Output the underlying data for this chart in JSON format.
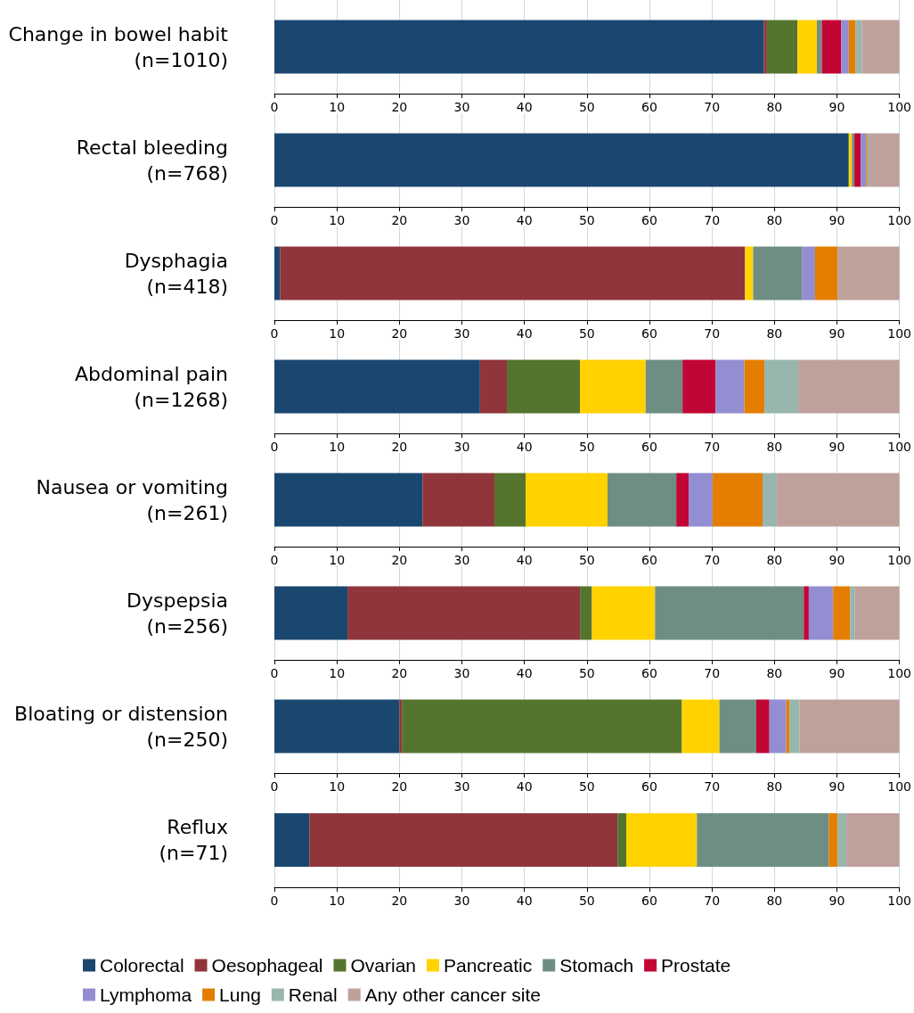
{
  "chart_data": [
    {
      "type": "bar",
      "orientation": "horizontal",
      "stacked": true,
      "categories": [
        "Change in bowel habit\n(n=1010)"
      ],
      "series": [
        {
          "color": "#1a476f",
          "values": [
            78.3
          ]
        },
        {
          "color": "#90353b",
          "values": [
            0.5
          ]
        },
        {
          "color": "#55752f",
          "values": [
            4.9
          ]
        },
        {
          "color": "#ffd200",
          "values": [
            3.1
          ]
        },
        {
          "color": "#6e8e84",
          "values": [
            0.8
          ]
        },
        {
          "color": "#c10534",
          "values": [
            3.1
          ]
        },
        {
          "color": "#938dd2",
          "values": [
            1.2
          ]
        },
        {
          "color": "#e37e00",
          "values": [
            1.1
          ]
        },
        {
          "color": "#98b6ad",
          "values": [
            1.0
          ]
        },
        {
          "color": "#bfa19c",
          "values": [
            6.0
          ]
        }
      ],
      "xlim": [
        0,
        100
      ],
      "xticks": [
        0,
        10,
        20,
        30,
        40,
        50,
        60,
        70,
        80,
        90,
        100
      ],
      "grid": "x"
    },
    {
      "type": "bar",
      "orientation": "horizontal",
      "stacked": true,
      "categories": [
        "Rectal bleeding\n(n=768)"
      ],
      "series": [
        {
          "color": "#1a476f",
          "values": [
            91.9
          ]
        },
        {
          "color": "#90353b",
          "values": [
            0
          ]
        },
        {
          "color": "#55752f",
          "values": [
            0
          ]
        },
        {
          "color": "#ffd200",
          "values": [
            0.5
          ]
        },
        {
          "color": "#6e8e84",
          "values": [
            0.4
          ]
        },
        {
          "color": "#c10534",
          "values": [
            1.0
          ]
        },
        {
          "color": "#938dd2",
          "values": [
            0.9
          ]
        },
        {
          "color": "#e37e00",
          "values": [
            0.2
          ]
        },
        {
          "color": "#98b6ad",
          "values": [
            0.3
          ]
        },
        {
          "color": "#bfa19c",
          "values": [
            4.8
          ]
        }
      ],
      "xlim": [
        0,
        100
      ],
      "xticks": [
        0,
        10,
        20,
        30,
        40,
        50,
        60,
        70,
        80,
        90,
        100
      ],
      "grid": "x"
    },
    {
      "type": "bar",
      "orientation": "horizontal",
      "stacked": true,
      "categories": [
        "Dysphagia\n(n=418)"
      ],
      "series": [
        {
          "color": "#1a476f",
          "values": [
            0.9
          ]
        },
        {
          "color": "#90353b",
          "values": [
            74.4
          ]
        },
        {
          "color": "#55752f",
          "values": [
            0
          ]
        },
        {
          "color": "#ffd200",
          "values": [
            1.3
          ]
        },
        {
          "color": "#6e8e84",
          "values": [
            7.8
          ]
        },
        {
          "color": "#c10534",
          "values": [
            0
          ]
        },
        {
          "color": "#938dd2",
          "values": [
            2.1
          ]
        },
        {
          "color": "#e37e00",
          "values": [
            3.6
          ]
        },
        {
          "color": "#98b6ad",
          "values": [
            0
          ]
        },
        {
          "color": "#bfa19c",
          "values": [
            9.9
          ]
        }
      ],
      "xlim": [
        0,
        100
      ],
      "xticks": [
        0,
        10,
        20,
        30,
        40,
        50,
        60,
        70,
        80,
        90,
        100
      ],
      "grid": "x"
    },
    {
      "type": "bar",
      "orientation": "horizontal",
      "stacked": true,
      "categories": [
        "Abdominal pain\n(n=1268)"
      ],
      "series": [
        {
          "color": "#1a476f",
          "values": [
            32.9
          ]
        },
        {
          "color": "#90353b",
          "values": [
            4.3
          ]
        },
        {
          "color": "#55752f",
          "values": [
            11.7
          ]
        },
        {
          "color": "#ffd200",
          "values": [
            10.5
          ]
        },
        {
          "color": "#6e8e84",
          "values": [
            5.9
          ]
        },
        {
          "color": "#c10534",
          "values": [
            5.3
          ]
        },
        {
          "color": "#938dd2",
          "values": [
            4.6
          ]
        },
        {
          "color": "#e37e00",
          "values": [
            3.2
          ]
        },
        {
          "color": "#98b6ad",
          "values": [
            5.4
          ]
        },
        {
          "color": "#bfa19c",
          "values": [
            16.2
          ]
        }
      ],
      "xlim": [
        0,
        100
      ],
      "xticks": [
        0,
        10,
        20,
        30,
        40,
        50,
        60,
        70,
        80,
        90,
        100
      ],
      "grid": "x"
    },
    {
      "type": "bar",
      "orientation": "horizontal",
      "stacked": true,
      "categories": [
        "Nausea or vomiting\n(n=261)"
      ],
      "series": [
        {
          "color": "#1a476f",
          "values": [
            23.7
          ]
        },
        {
          "color": "#90353b",
          "values": [
            11.5
          ]
        },
        {
          "color": "#55752f",
          "values": [
            5.0
          ]
        },
        {
          "color": "#ffd200",
          "values": [
            13.1
          ]
        },
        {
          "color": "#6e8e84",
          "values": [
            11.0
          ]
        },
        {
          "color": "#c10534",
          "values": [
            2.0
          ]
        },
        {
          "color": "#938dd2",
          "values": [
            3.8
          ]
        },
        {
          "color": "#e37e00",
          "values": [
            8.0
          ]
        },
        {
          "color": "#98b6ad",
          "values": [
            2.3
          ]
        },
        {
          "color": "#bfa19c",
          "values": [
            19.6
          ]
        }
      ],
      "xlim": [
        0,
        100
      ],
      "xticks": [
        0,
        10,
        20,
        30,
        40,
        50,
        60,
        70,
        80,
        90,
        100
      ],
      "grid": "x"
    },
    {
      "type": "bar",
      "orientation": "horizontal",
      "stacked": true,
      "categories": [
        "Dyspepsia\n(n=256)"
      ],
      "series": [
        {
          "color": "#1a476f",
          "values": [
            11.7
          ]
        },
        {
          "color": "#90353b",
          "values": [
            37.2
          ]
        },
        {
          "color": "#55752f",
          "values": [
            1.9
          ]
        },
        {
          "color": "#ffd200",
          "values": [
            10.1
          ]
        },
        {
          "color": "#6e8e84",
          "values": [
            23.8
          ]
        },
        {
          "color": "#c10534",
          "values": [
            0.8
          ]
        },
        {
          "color": "#938dd2",
          "values": [
            3.9
          ]
        },
        {
          "color": "#e37e00",
          "values": [
            2.7
          ]
        },
        {
          "color": "#98b6ad",
          "values": [
            0.8
          ]
        },
        {
          "color": "#bfa19c",
          "values": [
            7.1
          ]
        }
      ],
      "xlim": [
        0,
        100
      ],
      "xticks": [
        0,
        10,
        20,
        30,
        40,
        50,
        60,
        70,
        80,
        90,
        100
      ],
      "grid": "x"
    },
    {
      "type": "bar",
      "orientation": "horizontal",
      "stacked": true,
      "categories": [
        "Bloating or distension\n(n=250)"
      ],
      "series": [
        {
          "color": "#1a476f",
          "values": [
            20.0
          ]
        },
        {
          "color": "#90353b",
          "values": [
            0.4
          ]
        },
        {
          "color": "#55752f",
          "values": [
            44.8
          ]
        },
        {
          "color": "#ffd200",
          "values": [
            6.0
          ]
        },
        {
          "color": "#6e8e84",
          "values": [
            5.9
          ]
        },
        {
          "color": "#c10534",
          "values": [
            2.1
          ]
        },
        {
          "color": "#938dd2",
          "values": [
            2.7
          ]
        },
        {
          "color": "#e37e00",
          "values": [
            0.5
          ]
        },
        {
          "color": "#98b6ad",
          "values": [
            1.6
          ]
        },
        {
          "color": "#bfa19c",
          "values": [
            16.0
          ]
        }
      ],
      "xlim": [
        0,
        100
      ],
      "xticks": [
        0,
        10,
        20,
        30,
        40,
        50,
        60,
        70,
        80,
        90,
        100
      ],
      "grid": "x"
    },
    {
      "type": "bar",
      "orientation": "horizontal",
      "stacked": true,
      "categories": [
        "Reflux\n(n=71)"
      ],
      "series": [
        {
          "name": "Colorectal",
          "color": "#1a476f",
          "values": [
            5.6
          ]
        },
        {
          "name": "Oesophageal",
          "color": "#90353b",
          "values": [
            49.3
          ]
        },
        {
          "name": "Ovarian",
          "color": "#55752f",
          "values": [
            1.4
          ]
        },
        {
          "name": "Pancreatic",
          "color": "#ffd200",
          "values": [
            11.3
          ]
        },
        {
          "name": "Stomach",
          "color": "#6e8e84",
          "values": [
            21.1
          ]
        },
        {
          "name": "Prostate",
          "color": "#c10534",
          "values": [
            0
          ]
        },
        {
          "name": "Lymphoma",
          "color": "#938dd2",
          "values": [
            0
          ]
        },
        {
          "name": "Lung",
          "color": "#e37e00",
          "values": [
            1.4
          ]
        },
        {
          "name": "Renal",
          "color": "#98b6ad",
          "values": [
            1.4
          ]
        },
        {
          "name": "Any other cancer site",
          "color": "#bfa19c",
          "values": [
            8.5
          ]
        }
      ],
      "xlim": [
        0,
        100
      ],
      "xticks": [
        0,
        10,
        20,
        30,
        40,
        50,
        60,
        70,
        80,
        90,
        100
      ],
      "grid": "x",
      "legend": "bottom"
    }
  ]
}
